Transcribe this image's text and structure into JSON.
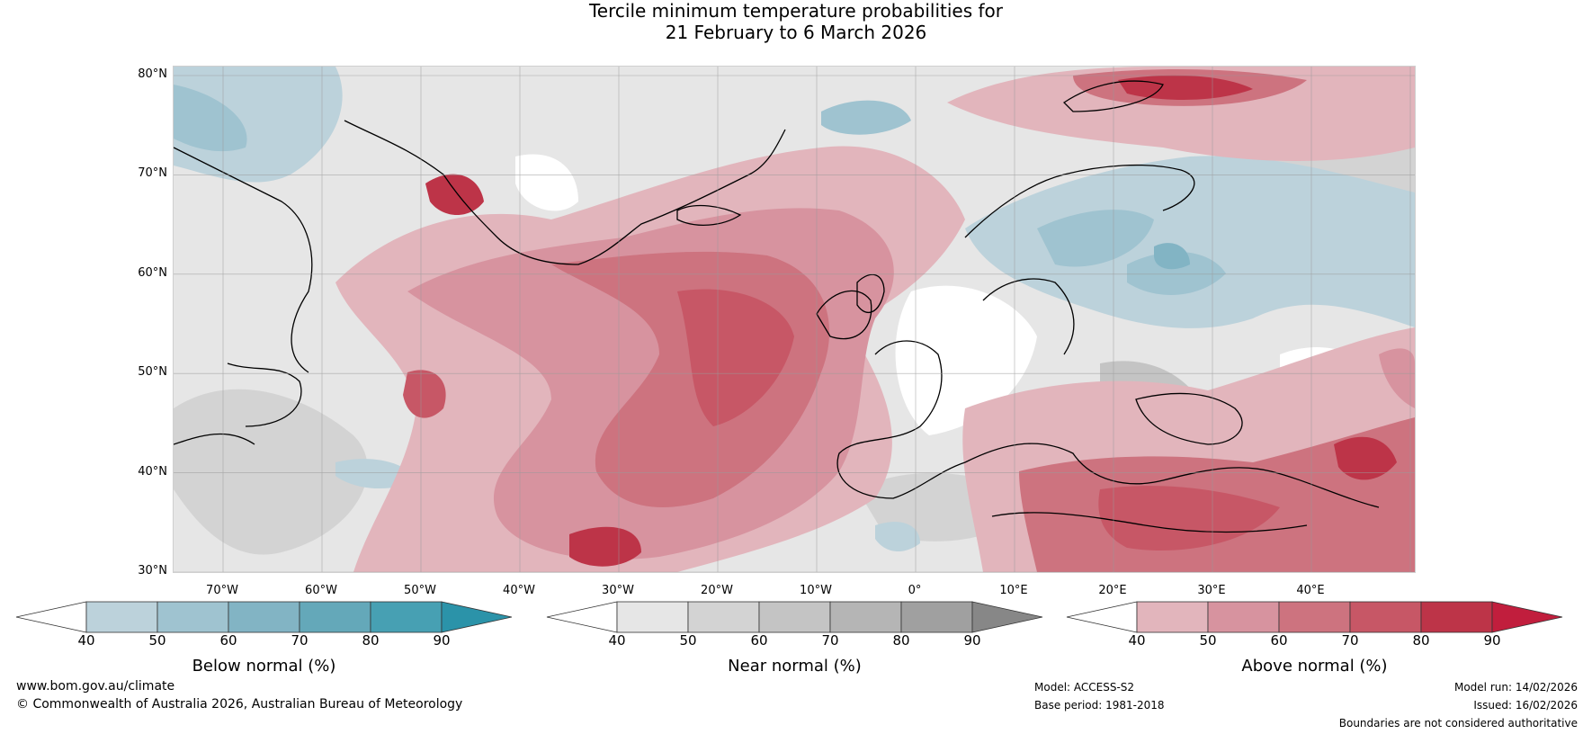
{
  "title": {
    "line1": "Tercile minimum temperature probabilities for",
    "line2": "21 February to 6 March 2026"
  },
  "map": {
    "lat_labels": [
      "80°N",
      "70°N",
      "60°N",
      "50°N",
      "40°N",
      "30°N"
    ],
    "lon_labels": [
      "70°W",
      "60°W",
      "50°W",
      "40°W",
      "30°W",
      "20°W",
      "10°W",
      "0°",
      "10°E",
      "20°E",
      "30°E",
      "40°E"
    ],
    "colors": {
      "below": [
        "#bcd2db",
        "#9fc3d0",
        "#82b4c4",
        "#64a8b9",
        "#47a0b3",
        "#2b93a9"
      ],
      "near": [
        "#e6e6e6",
        "#d3d3d3",
        "#c4c4c4",
        "#b5b5b5",
        "#a0a0a0",
        "#878787"
      ],
      "above": [
        "#e2b5bc",
        "#d7939f",
        "#cd737f",
        "#c75766",
        "#bd3448",
        "#c11e3d"
      ]
    }
  },
  "legends": [
    {
      "title": "Below normal (%)",
      "ticks": [
        "40",
        "50",
        "60",
        "70",
        "80",
        "90"
      ],
      "colors": [
        "#ffffff",
        "#bcd2db",
        "#9fc3d0",
        "#82b4c4",
        "#64a8b9",
        "#47a0b3",
        "#2b93a9"
      ]
    },
    {
      "title": "Near normal (%)",
      "ticks": [
        "40",
        "50",
        "60",
        "70",
        "80",
        "90"
      ],
      "colors": [
        "#ffffff",
        "#e6e6e6",
        "#d3d3d3",
        "#c4c4c4",
        "#b5b5b5",
        "#a0a0a0",
        "#878787"
      ]
    },
    {
      "title": "Above normal (%)",
      "ticks": [
        "40",
        "50",
        "60",
        "70",
        "80",
        "90"
      ],
      "colors": [
        "#ffffff",
        "#e2b5bc",
        "#d7939f",
        "#cd737f",
        "#c75766",
        "#bd3448",
        "#c11e3d"
      ]
    }
  ],
  "footer": {
    "website": "www.bom.gov.au/climate",
    "copyright": "© Commonwealth of Australia 2026, Australian Bureau of Meteorology",
    "model": "Model: ACCESS-S2",
    "base_period": "Base period: 1981-2018",
    "model_run": "Model run: 14/02/2026",
    "issued": "Issued: 16/02/2026",
    "disclaimer": "Boundaries are not considered authoritative"
  }
}
